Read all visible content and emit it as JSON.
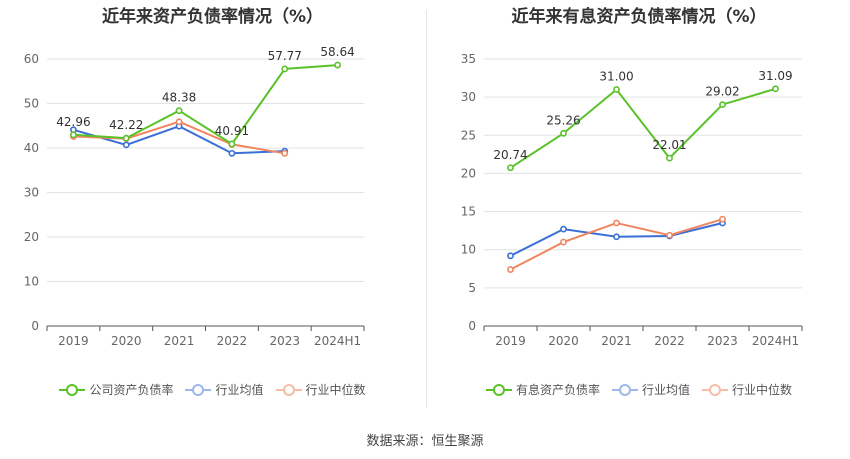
{
  "source": "数据来源：恒生聚源",
  "chart_data": [
    {
      "type": "line",
      "title": "近年来资产负债率情况（%）",
      "categories": [
        "2019",
        "2020",
        "2021",
        "2022",
        "2023",
        "2024H1"
      ],
      "ylim": [
        0,
        60
      ],
      "yticks": [
        0,
        10,
        20,
        30,
        40,
        50,
        60
      ],
      "grid": true,
      "legend_position": "bottom",
      "series": [
        {
          "name": "公司资产负债率",
          "color": "#5ac229",
          "values": [
            42.96,
            42.22,
            48.38,
            40.91,
            57.77,
            58.64
          ],
          "labels": [
            "42.96",
            "42.22",
            "48.38",
            "40.91",
            "57.77",
            "58.64"
          ]
        },
        {
          "name": "行业均值",
          "color": "#3a6fd6",
          "values": [
            44.1,
            40.7,
            44.9,
            38.8,
            39.3,
            null
          ]
        },
        {
          "name": "行业中位数",
          "color": "#f08660",
          "values": [
            42.6,
            42.1,
            45.9,
            40.8,
            38.8,
            null
          ]
        }
      ]
    },
    {
      "type": "line",
      "title": "近年来有息资产负债率情况（%）",
      "categories": [
        "2019",
        "2020",
        "2021",
        "2022",
        "2023",
        "2024H1"
      ],
      "ylim": [
        0,
        35
      ],
      "yticks": [
        0,
        5,
        10,
        15,
        20,
        25,
        30,
        35
      ],
      "grid": true,
      "legend_position": "bottom",
      "series": [
        {
          "name": "有息资产负债率",
          "color": "#5ac229",
          "values": [
            20.74,
            25.26,
            31.0,
            22.01,
            29.02,
            31.09
          ],
          "labels": [
            "20.74",
            "25.26",
            "31.00",
            "22.01",
            "29.02",
            "31.09"
          ]
        },
        {
          "name": "行业均值",
          "color": "#3a6fd6",
          "values": [
            9.2,
            12.7,
            11.7,
            11.8,
            13.5,
            null
          ]
        },
        {
          "name": "行业中位数",
          "color": "#f08660",
          "values": [
            7.4,
            11.0,
            13.5,
            11.9,
            14.0,
            null
          ]
        }
      ]
    }
  ]
}
